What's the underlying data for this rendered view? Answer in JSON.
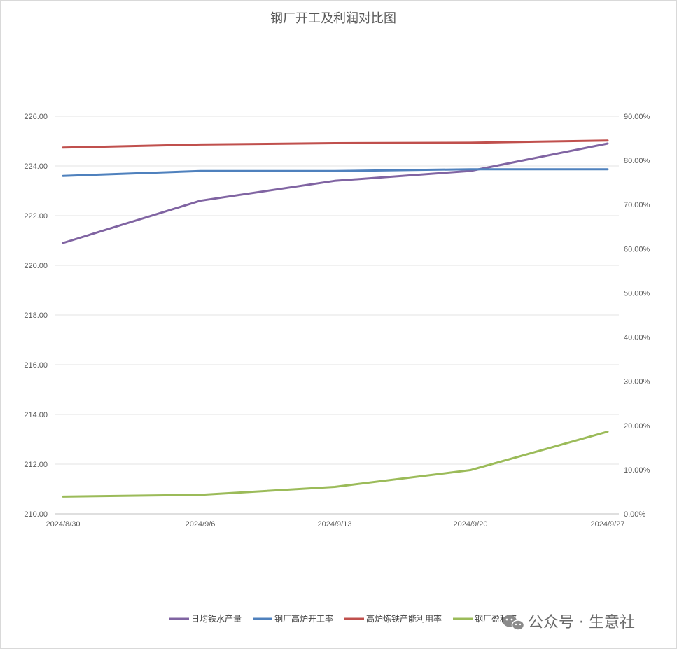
{
  "chart_data": {
    "type": "line",
    "title": "钢厂开工及利润对比图",
    "categories": [
      "2024/8/30",
      "2024/9/6",
      "2024/9/13",
      "2024/9/20",
      "2024/9/27"
    ],
    "y_left": {
      "min": 210,
      "max": 226,
      "ticks": [
        "210.00",
        "212.00",
        "214.00",
        "216.00",
        "218.00",
        "220.00",
        "222.00",
        "224.00",
        "226.00"
      ]
    },
    "y_right": {
      "min": 0,
      "max": 90,
      "ticks": [
        "0.00%",
        "10.00%",
        "20.00%",
        "30.00%",
        "40.00%",
        "50.00%",
        "60.00%",
        "70.00%",
        "80.00%",
        "90.00%"
      ]
    },
    "grid": true,
    "legend_position": "bottom",
    "series": [
      {
        "name": "日均铁水产量",
        "axis": "left",
        "color": "#8064a2",
        "values": [
          220.9,
          222.6,
          223.4,
          223.8,
          224.9
        ]
      },
      {
        "name": "钢厂高炉开工率",
        "axis": "right",
        "color": "#4f81bd",
        "values": [
          76.5,
          77.6,
          77.6,
          78.0,
          78.0
        ]
      },
      {
        "name": "高炉炼铁产能利用率",
        "axis": "right",
        "color": "#c0504d",
        "values": [
          82.9,
          83.6,
          83.9,
          84.0,
          84.5
        ]
      },
      {
        "name": "钢厂盈利率",
        "axis": "right",
        "color": "#9bbb59",
        "values": [
          3.9,
          4.3,
          6.1,
          9.9,
          18.6
        ]
      }
    ]
  },
  "watermark": {
    "text": "公众号 · 生意社",
    "icon": "wechat-icon"
  }
}
